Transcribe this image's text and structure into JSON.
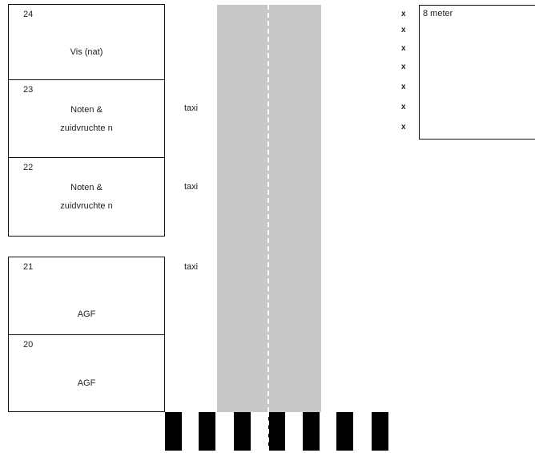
{
  "stalls": [
    {
      "number": "24",
      "label": "Vis (nat)"
    },
    {
      "number": "23",
      "label": "Noten &\nzuidvruchte n"
    },
    {
      "number": "22",
      "label": "Noten &\nzuidvruchte n"
    },
    {
      "number": "21",
      "label": "AGF"
    },
    {
      "number": "20",
      "label": "AGF"
    }
  ],
  "taxi_labels": [
    "taxi",
    "taxi",
    "taxi"
  ],
  "markers": [
    "x",
    "x",
    "x",
    "x",
    "x",
    "x",
    "x"
  ],
  "distance_label": "8 meter",
  "colors": {
    "road": "#c8c8c8",
    "outline": "#111111",
    "crossing": "#000000"
  }
}
